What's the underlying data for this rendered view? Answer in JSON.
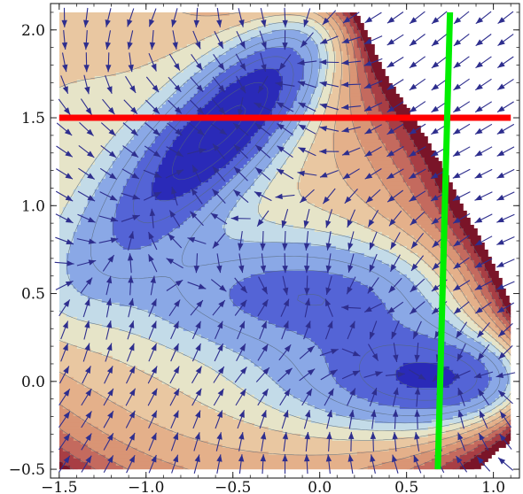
{
  "chart_data": {
    "type": "contour",
    "title": "",
    "xlabel": "",
    "ylabel": "",
    "xlim": [
      -1.55,
      1.15
    ],
    "ylim": [
      -0.55,
      2.15
    ],
    "x_ticks": [
      -1.5,
      -1.0,
      -0.5,
      0.0,
      0.5,
      1.0
    ],
    "x_tick_labels": [
      "−1.5",
      "−1.0",
      "−0.5",
      "0.0",
      "0.5",
      "1.0"
    ],
    "y_ticks": [
      -0.5,
      0.0,
      0.5,
      1.0,
      1.5,
      2.0
    ],
    "y_tick_labels": [
      "−0.5",
      "0.0",
      "0.5",
      "1.0",
      "1.5",
      "2.0"
    ],
    "field_domain": {
      "x": [
        -1.5,
        1.1
      ],
      "y": [
        -0.5,
        2.1
      ]
    },
    "contour_levels": [
      -140,
      -120,
      -100,
      -80,
      -60,
      -40,
      -20,
      0,
      20,
      40,
      60,
      80,
      100,
      120
    ],
    "colors": {
      "low_dark": "#2a2ab8",
      "low": "#5464d6",
      "mid_low": "#8aa8e6",
      "base": "#c3dbe8",
      "mid": "#e6e4c8",
      "high": "#e9c7a1",
      "higher": "#d99575",
      "highest": "#7a1428",
      "contour_line": "#556677",
      "arrow": "#2e2e8e",
      "h_line": "#ff0000",
      "v_line": "#00ee00"
    },
    "vector_field": {
      "grid_x": 21,
      "grid_y": 21,
      "direction": "negative-gradient"
    },
    "lines": [
      {
        "name": "horizontal",
        "x": [
          -1.5,
          1.1
        ],
        "y": [
          1.5,
          1.5
        ],
        "color": "#ff0000"
      },
      {
        "name": "vertical",
        "x": [
          0.68,
          0.75
        ],
        "y": [
          -0.5,
          2.1
        ],
        "color": "#00ee00"
      }
    ]
  }
}
